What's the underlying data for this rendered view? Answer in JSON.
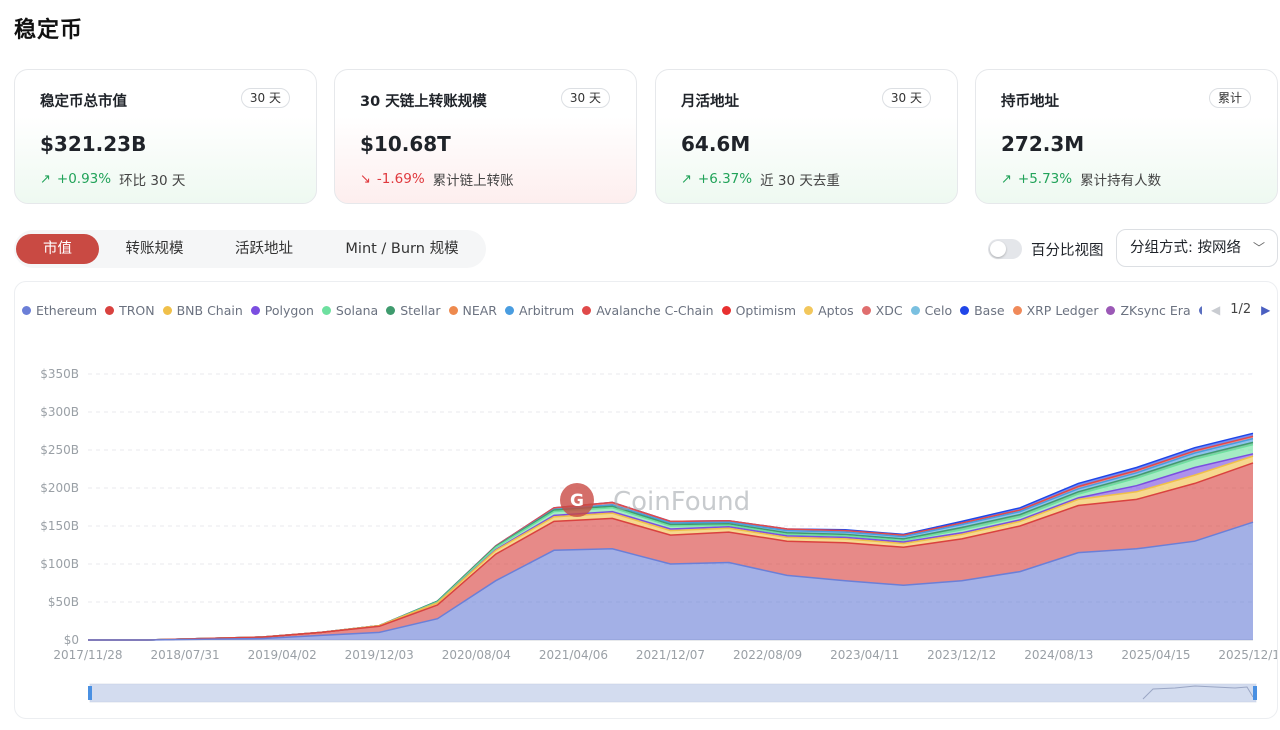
{
  "page": {
    "title": "稳定币"
  },
  "cards": [
    {
      "title": "稳定币总市值",
      "badge": "30 天",
      "value": "$321.23B",
      "direction": "up",
      "arrow": "↗",
      "change": "+0.93%",
      "note": "环比 30 天"
    },
    {
      "title": "30 天链上转账规模",
      "badge": "30 天",
      "value": "$10.68T",
      "direction": "down",
      "arrow": "↘",
      "change": "-1.69%",
      "note": "累计链上转账"
    },
    {
      "title": "月活地址",
      "badge": "30 天",
      "value": "64.6M",
      "direction": "up",
      "arrow": "↗",
      "change": "+6.37%",
      "note": "近 30 天去重"
    },
    {
      "title": "持币地址",
      "badge": "累计",
      "value": "272.3M",
      "direction": "up",
      "arrow": "↗",
      "change": "+5.73%",
      "note": "累计持有人数"
    }
  ],
  "tabs": [
    {
      "label": "市值",
      "active": true
    },
    {
      "label": "转账规模",
      "active": false
    },
    {
      "label": "活跃地址",
      "active": false
    },
    {
      "label": "Mint / Burn 规模",
      "active": false
    }
  ],
  "controls": {
    "percent_toggle_label": "百分比视图",
    "percent_toggle_on": false,
    "group_by": "分组方式: 按网络"
  },
  "legend": {
    "items": [
      {
        "name": "Ethereum",
        "color": "#6b7fd7"
      },
      {
        "name": "TRON",
        "color": "#d9423f"
      },
      {
        "name": "BNB Chain",
        "color": "#f0c04a"
      },
      {
        "name": "Polygon",
        "color": "#7b4ee0"
      },
      {
        "name": "Solana",
        "color": "#6ee0a0"
      },
      {
        "name": "Stellar",
        "color": "#3f9b6e"
      },
      {
        "name": "NEAR",
        "color": "#ee8a4e"
      },
      {
        "name": "Arbitrum",
        "color": "#4a9de0"
      },
      {
        "name": "Avalanche C-Chain",
        "color": "#e04a4a"
      },
      {
        "name": "Optimism",
        "color": "#e83030"
      },
      {
        "name": "Aptos",
        "color": "#f2c75c"
      },
      {
        "name": "XDC",
        "color": "#e06e6e"
      },
      {
        "name": "Celo",
        "color": "#7ac0e0"
      },
      {
        "name": "Base",
        "color": "#2046e8"
      },
      {
        "name": "XRP Ledger",
        "color": "#f08a5a"
      },
      {
        "name": "ZKsync Era",
        "color": "#9b59b6"
      },
      {
        "name": "I",
        "color": "#5a6fc0"
      }
    ],
    "page": "1/2"
  },
  "watermark": "CoinFound",
  "chart_data": {
    "type": "area",
    "stacked": true,
    "y_ticks": [
      "$0",
      "$50B",
      "$100B",
      "$150B",
      "$200B",
      "$250B",
      "$300B",
      "$350B"
    ],
    "ylim": [
      0,
      350
    ],
    "x_ticks": [
      "2017/11/28",
      "2018/07/31",
      "2019/04/02",
      "2019/12/03",
      "2020/08/04",
      "2021/04/06",
      "2021/12/07",
      "2022/08/09",
      "2023/04/11",
      "2023/12/12",
      "2024/08/13",
      "2025/04/15",
      "2025/12/16"
    ],
    "x": [
      "2017/11/28",
      "2018/07/31",
      "2019/04/02",
      "2019/12/03",
      "2020/08/04",
      "2020/12/01",
      "2021/04/06",
      "2021/08/01",
      "2021/12/07",
      "2022/04/01",
      "2022/08/09",
      "2022/12/01",
      "2023/04/11",
      "2023/08/01",
      "2023/12/12",
      "2024/04/01",
      "2024/08/13",
      "2024/12/01",
      "2025/04/15",
      "2025/08/01",
      "2025/12/16"
    ],
    "series": [
      {
        "name": "Ethereum",
        "color": "#6b7fd7",
        "values": [
          0,
          0,
          1,
          2,
          6,
          10,
          28,
          78,
          118,
          120,
          100,
          102,
          85,
          78,
          72,
          78,
          90,
          115,
          120,
          130,
          155
        ]
      },
      {
        "name": "TRON",
        "color": "#d9423f",
        "values": [
          0,
          0,
          1,
          2,
          4,
          8,
          18,
          35,
          38,
          40,
          38,
          40,
          45,
          50,
          50,
          55,
          60,
          62,
          65,
          76,
          78
        ]
      },
      {
        "name": "BNB Chain",
        "color": "#f0c04a",
        "values": [
          0,
          0,
          0,
          0,
          0,
          1,
          3,
          5,
          6,
          7,
          6,
          5,
          5,
          5,
          5,
          6,
          6,
          8,
          10,
          11,
          9
        ]
      },
      {
        "name": "Polygon",
        "color": "#7b4ee0",
        "values": [
          0,
          0,
          0,
          0,
          0,
          0,
          0,
          1,
          2,
          2,
          2,
          2,
          2,
          2,
          2,
          2,
          2,
          2,
          8,
          10,
          3
        ]
      },
      {
        "name": "Solana",
        "color": "#6ee0a0",
        "values": [
          0,
          0,
          0,
          0,
          0,
          0,
          1,
          3,
          5,
          5,
          4,
          2,
          2,
          2,
          2,
          4,
          4,
          5,
          10,
          11,
          12
        ]
      },
      {
        "name": "Stellar",
        "color": "#3f9b6e",
        "values": [
          0,
          0,
          0,
          0,
          0,
          0,
          1,
          1,
          2,
          2,
          2,
          2,
          2,
          2,
          2,
          3,
          3,
          3,
          3,
          3,
          3
        ]
      },
      {
        "name": "Arbitrum",
        "color": "#4a9de0",
        "values": [
          0,
          0,
          0,
          0,
          0,
          0,
          0,
          0,
          1,
          2,
          2,
          2,
          3,
          3,
          3,
          4,
          4,
          4,
          4,
          5,
          5
        ]
      },
      {
        "name": "Avalanche C-Chain",
        "color": "#e04a4a",
        "values": [
          0,
          0,
          0,
          0,
          0,
          0,
          0,
          1,
          2,
          3,
          2,
          2,
          2,
          2,
          2,
          2,
          2,
          3,
          3,
          3,
          3
        ]
      },
      {
        "name": "Base",
        "color": "#2046e8",
        "values": [
          0,
          0,
          0,
          0,
          0,
          0,
          0,
          0,
          0,
          0,
          0,
          0,
          0,
          1,
          1,
          2,
          3,
          4,
          4,
          4,
          4
        ]
      }
    ]
  }
}
